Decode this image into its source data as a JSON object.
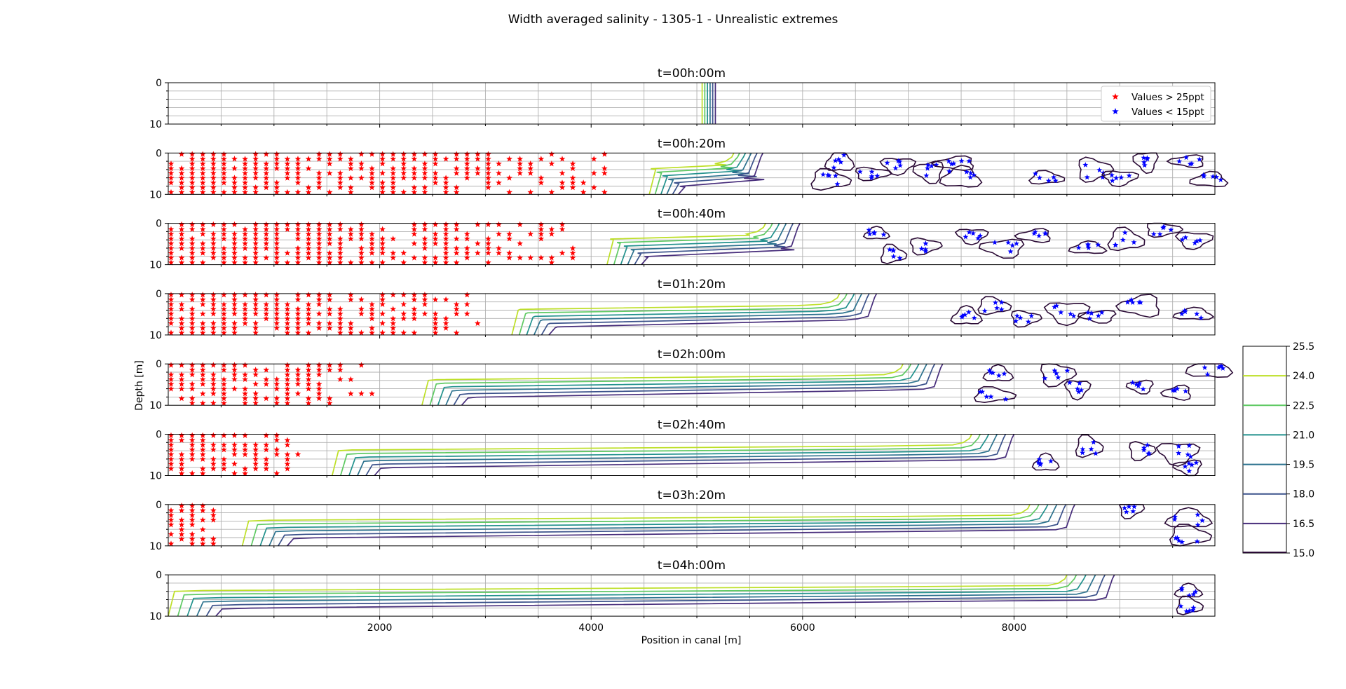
{
  "figure": {
    "title": "Width averaged salinity - 1305-1 - Unrealistic extremes",
    "xlabel": "Position in canal [m]",
    "ylabel": "Depth [m]"
  },
  "legend": {
    "high": "Values > 25ppt",
    "low": "Values < 15ppt"
  },
  "colors": {
    "high_marker": "#ff0000",
    "low_marker": "#0000ff",
    "grid": "#b0b0b0",
    "contour_outline": "#2a0a35"
  },
  "chart_data": {
    "type": "contour",
    "xlim": [
      0,
      9900
    ],
    "ylim": [
      10,
      0
    ],
    "xticks": [
      2000,
      4000,
      6000,
      8000
    ],
    "yticks": [
      0,
      10
    ],
    "grid": true,
    "legend_location": "upper right of first panel",
    "colorbar": {
      "ticks": [
        "25.5",
        "24.0",
        "22.5",
        "21.0",
        "19.5",
        "18.0",
        "16.5",
        "15.0"
      ],
      "levels": [
        24.0,
        22.5,
        21.0,
        19.5,
        18.0,
        16.5
      ],
      "colors": [
        "#bddf26",
        "#5ec962",
        "#21918c",
        "#2c728e",
        "#3b528b",
        "#472d7b"
      ]
    },
    "panels": [
      {
        "title": "t=00h:00m",
        "front_top": 5050,
        "front_bottom": 5050,
        "ramp": 0,
        "spread": 25,
        "high_markers_until": 0,
        "low_clusters": []
      },
      {
        "title": "t=00h:20m",
        "front_top": 5350,
        "front_bottom": 4550,
        "ramp": 280,
        "spread": 55,
        "high_markers_until": 4150,
        "low_clusters": [
          [
            6350,
            2.0
          ],
          [
            6250,
            6.5
          ],
          [
            6650,
            5.0
          ],
          [
            6900,
            3.0
          ],
          [
            7200,
            4.5
          ],
          [
            7450,
            2.5
          ],
          [
            7500,
            6.0
          ],
          [
            8300,
            6.0
          ],
          [
            8750,
            4.0
          ],
          [
            9000,
            6.0
          ],
          [
            9250,
            2.0
          ],
          [
            9650,
            2.0
          ],
          [
            9850,
            6.5
          ]
        ]
      },
      {
        "title": "t=00h:40m",
        "front_top": 5650,
        "front_bottom": 4150,
        "ramp": 600,
        "spread": 65,
        "high_markers_until": 3800,
        "low_clusters": [
          [
            6700,
            2.5
          ],
          [
            6850,
            7.5
          ],
          [
            7150,
            5.5
          ],
          [
            7600,
            3.0
          ],
          [
            7900,
            6.0
          ],
          [
            8200,
            3.0
          ],
          [
            8700,
            6.0
          ],
          [
            9050,
            4.0
          ],
          [
            9400,
            1.5
          ],
          [
            9700,
            4.0
          ]
        ]
      },
      {
        "title": "t=01h:20m",
        "front_top": 6350,
        "front_bottom": 3250,
        "ramp": 1600,
        "spread": 70,
        "high_markers_until": 2950,
        "low_clusters": [
          [
            7550,
            5.5
          ],
          [
            7800,
            3.0
          ],
          [
            8100,
            6.0
          ],
          [
            8500,
            4.5
          ],
          [
            8800,
            5.5
          ],
          [
            9200,
            3.0
          ],
          [
            9700,
            5.0
          ]
        ]
      },
      {
        "title": "t=02h:00m",
        "front_top": 6950,
        "front_bottom": 2400,
        "ramp": 2800,
        "spread": 75,
        "high_markers_until": 1950,
        "low_clusters": [
          [
            7850,
            2.5
          ],
          [
            7800,
            7.5
          ],
          [
            8400,
            2.5
          ],
          [
            8600,
            6.0
          ],
          [
            9200,
            5.5
          ],
          [
            9550,
            7.0
          ],
          [
            9850,
            1.0
          ]
        ]
      },
      {
        "title": "t=02h:40m",
        "front_top": 7600,
        "front_bottom": 1550,
        "ramp": 3800,
        "spread": 80,
        "high_markers_until": 1250,
        "low_clusters": [
          [
            8300,
            7.0
          ],
          [
            8700,
            3.0
          ],
          [
            9200,
            4.0
          ],
          [
            9550,
            4.5
          ],
          [
            9650,
            8.0
          ]
        ]
      },
      {
        "title": "t=03h:20m",
        "front_top": 8150,
        "front_bottom": 700,
        "ramp": 5200,
        "spread": 85,
        "high_markers_until": 400,
        "low_clusters": [
          [
            9650,
            3.5
          ],
          [
            9650,
            7.5
          ],
          [
            9100,
            1.0
          ]
        ]
      },
      {
        "title": "t=04h:00m",
        "front_top": 8500,
        "front_bottom": 0,
        "ramp": 6600,
        "spread": 90,
        "high_markers_until": 0,
        "low_clusters": [
          [
            9650,
            4.0
          ],
          [
            9650,
            7.5
          ]
        ]
      }
    ]
  }
}
